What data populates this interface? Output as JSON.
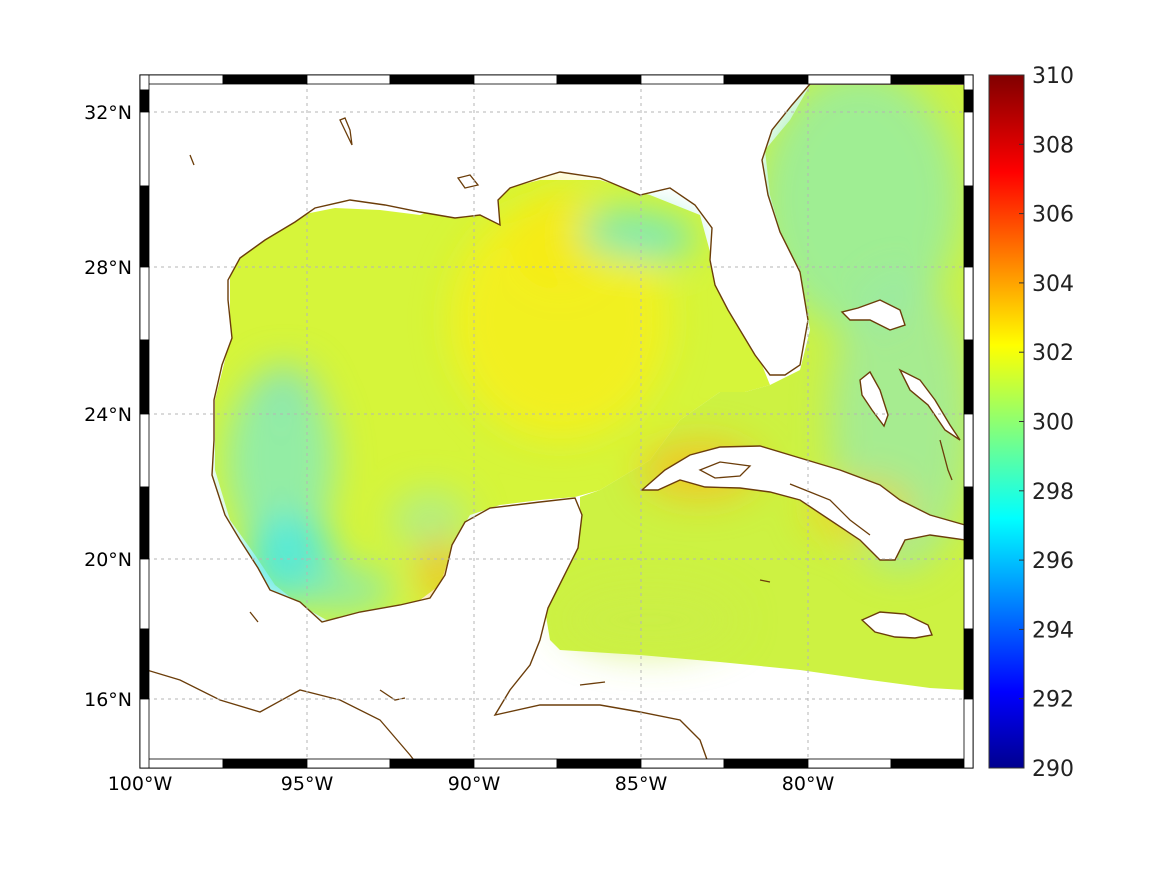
{
  "chart_data": {
    "type": "heatmap",
    "title": "",
    "xlabel": "",
    "ylabel": "",
    "xlim": [
      -100,
      -75
    ],
    "ylim": [
      14,
      33
    ],
    "x_ticks": [
      {
        "value": -100,
        "label": "100°W"
      },
      {
        "value": -95,
        "label": "95°W"
      },
      {
        "value": -90,
        "label": "90°W"
      },
      {
        "value": -85,
        "label": "85°W"
      },
      {
        "value": -80,
        "label": "80°W"
      }
    ],
    "y_ticks": [
      {
        "value": 32,
        "label": "32°N"
      },
      {
        "value": 28,
        "label": "28°N"
      },
      {
        "value": 24,
        "label": "24°N"
      },
      {
        "value": 20,
        "label": "20°N"
      },
      {
        "value": 16,
        "label": "16°N"
      }
    ],
    "colorbar": {
      "min": 290,
      "max": 310,
      "ticks": [
        "290",
        "292",
        "294",
        "296",
        "298",
        "300",
        "302",
        "304",
        "306",
        "308",
        "310"
      ],
      "colormap": "jet"
    },
    "value_summary": {
      "gulf_central_east": 302.5,
      "gulf_west_coast": 298.5,
      "bay_of_campeche_west": 297.5,
      "atlantic_off_florida": 300,
      "caribbean": 301.5,
      "south_of_cuba_coast": 303.5,
      "east_of_bahamas": 300
    },
    "grid": true,
    "colors": {
      "coastline": "#6b3d0a",
      "grid": "#b5b5b5",
      "land": "#ffffff"
    }
  }
}
